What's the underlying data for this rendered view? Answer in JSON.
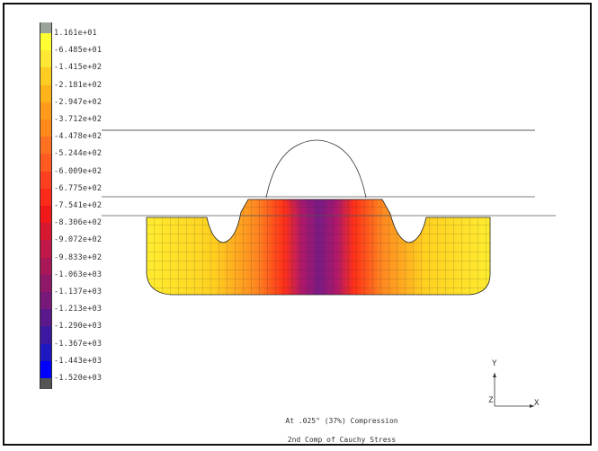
{
  "legend": {
    "colors": [
      "#9aa39a",
      "#ffff33",
      "#ffe833",
      "#ffcc22",
      "#ffb31a",
      "#ff9a1a",
      "#ff8a1a",
      "#ff7020",
      "#ff5a20",
      "#ff4020",
      "#ff2a1a",
      "#f01818",
      "#d81830",
      "#c01848",
      "#a81858",
      "#901868",
      "#781878",
      "#5a188a",
      "#3c18a0",
      "#1e18c0",
      "#0000ff",
      "#555555"
    ],
    "labels": [
      "1.161e+01",
      "-6.485e+01",
      "-1.415e+02",
      "-2.181e+02",
      "-2.947e+02",
      "-3.712e+02",
      "-4.478e+02",
      "-5.244e+02",
      "-6.009e+02",
      "-6.775e+02",
      "-7.541e+02",
      "-8.306e+02",
      "-9.072e+02",
      "-9.833e+02",
      "-1.063e+03",
      "-1.137e+03",
      "-1.213e+03",
      "-1.290e+03",
      "-1.367e+03",
      "-1.443e+03",
      "-1.520e+03"
    ]
  },
  "captions": {
    "line1": "At .025\" (37%) Compression",
    "line2": "2nd Comp of Cauchy Stress"
  },
  "triad": {
    "y_label": "Y",
    "z_label": "Z",
    "x_label": "X"
  }
}
